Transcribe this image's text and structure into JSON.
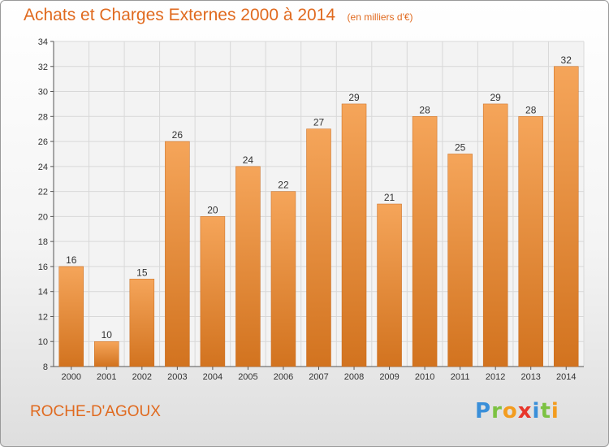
{
  "header": {
    "title": "Achats et Charges Externes 2000 à 2014",
    "subtitle": "(en milliers d'€)"
  },
  "place_name": "ROCHE-D'AGOUX",
  "logo": {
    "letters": [
      "P",
      "r",
      "o",
      "x",
      "i",
      "t",
      "i"
    ],
    "colors": [
      "#3a8fd9",
      "#7cc242",
      "#f39c1f",
      "#e8362b",
      "#3a8fd9",
      "#7cc242",
      "#f39c1f"
    ]
  },
  "colors": {
    "bar_light": "#f5a55a",
    "bar_dark": "#d2731f",
    "accent": "#e06a1f",
    "grid": "#d8d8d8"
  },
  "chart_data": {
    "type": "bar",
    "categories": [
      "2000",
      "2001",
      "2002",
      "2003",
      "2004",
      "2005",
      "2006",
      "2007",
      "2008",
      "2009",
      "2010",
      "2011",
      "2012",
      "2013",
      "2014"
    ],
    "values": [
      16,
      10,
      15,
      26,
      20,
      24,
      22,
      27,
      29,
      21,
      28,
      25,
      29,
      28,
      32
    ],
    "title": "Achats et Charges Externes 2000 à 2014",
    "subtitle": "(en milliers d'€)",
    "ylim": [
      8,
      34
    ],
    "yticks": [
      8,
      10,
      12,
      14,
      16,
      18,
      20,
      22,
      24,
      26,
      28,
      30,
      32,
      34
    ],
    "grid": true,
    "data_labels": true
  }
}
